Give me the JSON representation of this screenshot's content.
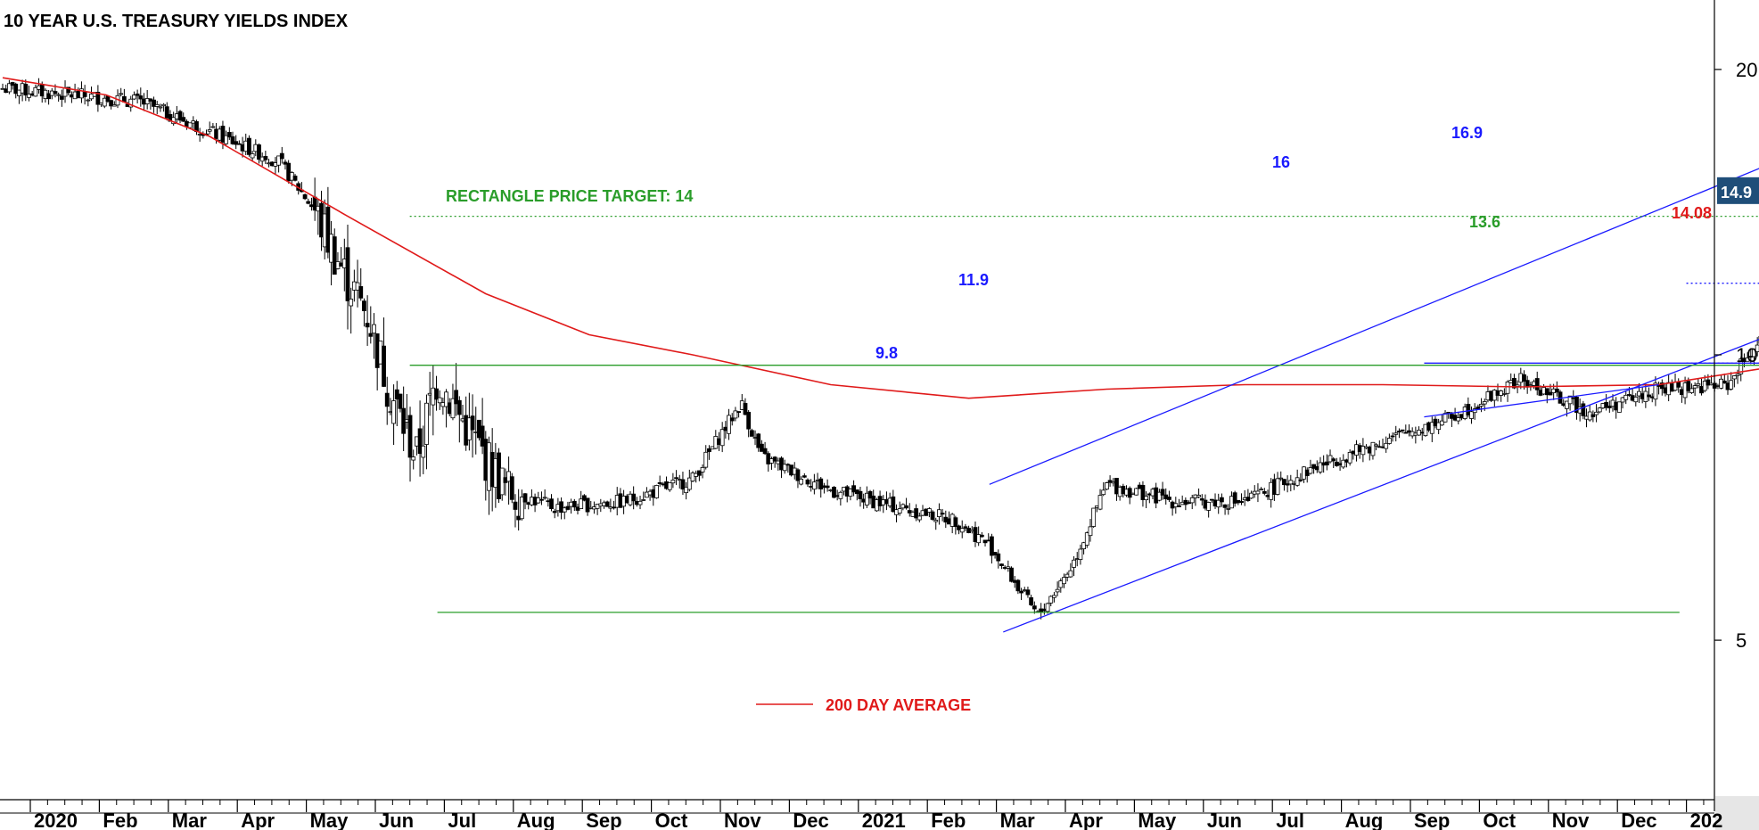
{
  "chart_data": {
    "type": "candlestick",
    "title": "10 YEAR U.S. TREASURY YIELDS INDEX",
    "scale": "log",
    "ylim": [
      3.5,
      23
    ],
    "y_ticks": [
      5,
      10,
      20
    ],
    "last_price": "14.9",
    "x_ticks": [
      "2020",
      "Feb",
      "Mar",
      "Apr",
      "May",
      "Jun",
      "Jul",
      "Aug",
      "Sep",
      "Oct",
      "Nov",
      "Dec",
      "2021",
      "Feb",
      "Mar",
      "Apr",
      "May",
      "Jun",
      "Jul",
      "Aug",
      "Sep",
      "Oct",
      "Nov",
      "Dec",
      "202"
    ],
    "price_path": [
      [
        0.0,
        19.1
      ],
      [
        2.0,
        18.5
      ],
      [
        3.0,
        17.2
      ],
      [
        4.0,
        16.0
      ],
      [
        4.5,
        14.3
      ],
      [
        5.0,
        12.0
      ],
      [
        5.3,
        11.0
      ],
      [
        5.6,
        9.2
      ],
      [
        6.0,
        7.8
      ],
      [
        6.3,
        9.5
      ],
      [
        6.8,
        8.2
      ],
      [
        7.3,
        7.2
      ],
      [
        8.0,
        6.9
      ],
      [
        9.0,
        7.0
      ],
      [
        10.0,
        7.4
      ],
      [
        10.7,
        8.9
      ],
      [
        11.0,
        7.8
      ],
      [
        12.0,
        7.2
      ],
      [
        13.0,
        6.9
      ],
      [
        13.8,
        6.7
      ],
      [
        14.3,
        6.3
      ],
      [
        15.0,
        5.3
      ],
      [
        15.5,
        6.0
      ],
      [
        16.0,
        7.3
      ],
      [
        17.0,
        7.0
      ],
      [
        18.0,
        7.0
      ],
      [
        19.0,
        7.6
      ],
      [
        20.0,
        8.1
      ],
      [
        21.0,
        8.6
      ],
      [
        22.0,
        9.4
      ],
      [
        23.0,
        8.7
      ],
      [
        24.0,
        9.2
      ],
      [
        25.0,
        9.3
      ],
      [
        25.5,
        10.5
      ],
      [
        26.0,
        11.2
      ],
      [
        27.0,
        10.5
      ],
      [
        27.5,
        11.5
      ],
      [
        28.0,
        12.5
      ],
      [
        29.0,
        15.0
      ],
      [
        30.0,
        16.5
      ],
      [
        31.0,
        17.4
      ],
      [
        32.0,
        17.0
      ],
      [
        33.0,
        16.8
      ],
      [
        34.0,
        16.6
      ],
      [
        35.0,
        16.4
      ],
      [
        36.0,
        15.5
      ],
      [
        37.0,
        14.8
      ],
      [
        38.0,
        14.0
      ],
      [
        39.0,
        12.2
      ],
      [
        40.0,
        12.0
      ],
      [
        41.0,
        13.2
      ],
      [
        42.0,
        13.0
      ],
      [
        43.0,
        13.2
      ],
      [
        44.0,
        15.5
      ],
      [
        45.0,
        16.3
      ],
      [
        46.0,
        16.1
      ],
      [
        47.0,
        15.6
      ],
      [
        48.0,
        16.0
      ],
      [
        48.8,
        15.2
      ],
      [
        49.0,
        15.0
      ]
    ],
    "ma_200": [
      [
        0.0,
        19.6
      ],
      [
        1.5,
        18.8
      ],
      [
        3.0,
        17.0
      ],
      [
        5.0,
        14.0
      ],
      [
        7.0,
        11.6
      ],
      [
        8.5,
        10.5
      ],
      [
        10.0,
        10.0
      ],
      [
        12.0,
        9.3
      ],
      [
        14.0,
        9.0
      ],
      [
        16.0,
        9.2
      ],
      [
        18.0,
        9.3
      ],
      [
        20.0,
        9.3
      ],
      [
        22.0,
        9.25
      ],
      [
        24.0,
        9.3
      ],
      [
        26.0,
        9.8
      ],
      [
        28.0,
        10.5
      ],
      [
        30.0,
        11.6
      ],
      [
        32.0,
        12.5
      ],
      [
        34.0,
        13.0
      ],
      [
        36.0,
        13.4
      ],
      [
        37.0,
        13.5
      ],
      [
        39.0,
        13.55
      ],
      [
        41.0,
        13.45
      ],
      [
        43.0,
        13.6
      ],
      [
        45.0,
        14.0
      ],
      [
        47.0,
        14.1
      ],
      [
        49.0,
        14.08
      ]
    ],
    "trendlines": [
      {
        "color": "#1a1aff",
        "from": [
          14.3,
          7.3
        ],
        "to": [
          30.6,
          22.4
        ]
      },
      {
        "color": "#1a1aff",
        "from": [
          14.5,
          5.1
        ],
        "to": [
          32.5,
          16.4
        ]
      },
      {
        "color": "#1a1aff",
        "from": [
          20.6,
          8.6
        ],
        "to": [
          24.0,
          9.3
        ]
      },
      {
        "color": "#1a1aff",
        "from": [
          28.6,
          17.8
        ],
        "to": [
          35.6,
          15.8
        ]
      },
      {
        "color": "#1a1aff",
        "from": [
          28.8,
          15.3
        ],
        "to": [
          39.3,
          13.4
        ]
      },
      {
        "color": "#1a1aff",
        "from": [
          35.6,
          14.3
        ],
        "to": [
          39.3,
          13.7
        ]
      },
      {
        "color": "#1a1aff",
        "from": [
          20.6,
          9.8
        ],
        "to": [
          25.5,
          9.8
        ]
      },
      {
        "color": "#1a1aff",
        "from": [
          41.5,
          16.9
        ],
        "to": [
          45.0,
          16.9
        ]
      },
      {
        "color": "#1a1aff",
        "from": [
          41.5,
          14.08
        ],
        "to": [
          46.0,
          14.08
        ]
      },
      {
        "color": "#2a9d2a",
        "from": [
          35.6,
          14.3
        ],
        "to": [
          40.4,
          13.6
        ]
      },
      {
        "color": "#2a9d2a",
        "from": [
          36.5,
          11.1
        ],
        "to": [
          40.4,
          13.0
        ]
      },
      {
        "color": "#2a9d2a",
        "from": [
          5.9,
          9.75
        ],
        "to": [
          35.6,
          9.75
        ]
      },
      {
        "color": "#2a9d2a",
        "from": [
          6.3,
          5.35
        ],
        "to": [
          24.3,
          5.35
        ]
      }
    ],
    "dotted_lines": [
      {
        "color": "#2a9d2a",
        "from": [
          5.9,
          14.0
        ],
        "to": [
          27.3,
          14.0
        ]
      },
      {
        "color": "#1a1aff",
        "from": [
          24.4,
          11.9
        ],
        "to": [
          26.6,
          11.9
        ]
      },
      {
        "color": "#1a1aff",
        "from": [
          24.4,
          9.8
        ],
        "to": [
          25.5,
          9.8
        ]
      }
    ],
    "annotations": [
      {
        "text": "RECTANGLE PRICE TARGET: 14",
        "color": "#2a9d2a"
      },
      {
        "text": "11.9",
        "color": "#1a1aff"
      },
      {
        "text": "9.8",
        "color": "#1a1aff"
      },
      {
        "text": "16",
        "color": "#1a1aff"
      },
      {
        "text": "16.9",
        "color": "#1a1aff"
      },
      {
        "text": "13.6",
        "color": "#2a9d2a"
      },
      {
        "text": "14.08",
        "color": "#e01a1a"
      }
    ],
    "legend": {
      "label": "200 DAY AVERAGE",
      "color": "#e01a1a",
      "placement": "bottom-center"
    },
    "colors": {
      "price": "#000000",
      "ma": "#e01a1a",
      "blue": "#1a1aff",
      "green": "#2a9d2a",
      "tag_bg": "#1f4e79"
    }
  }
}
